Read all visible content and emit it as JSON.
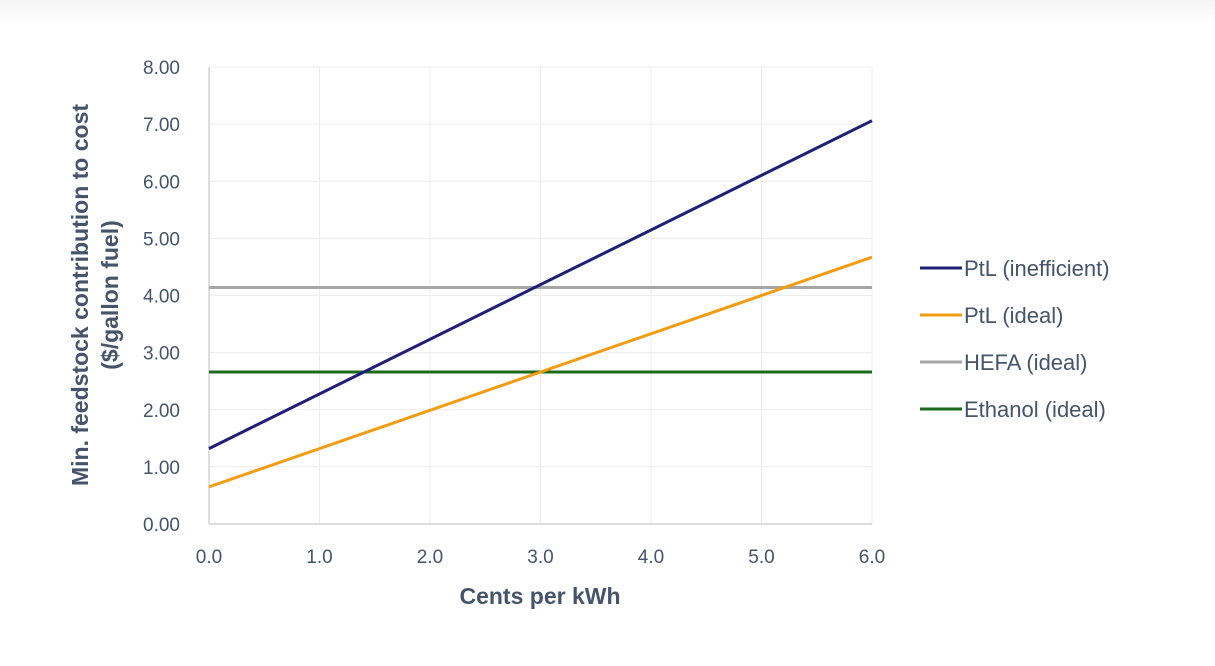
{
  "chart_data": {
    "type": "line",
    "xlabel": "Cents per kWh",
    "ylabel": "Min. feedstock contribution to cost (",
    "ylabel_line1": "Min. feedstock contribution to cost",
    "ylabel_line2": "($/gallon fuel)",
    "xlim": [
      0,
      6
    ],
    "ylim": [
      0,
      8
    ],
    "x_ticks": [
      "0.0",
      "1.0",
      "2.0",
      "3.0",
      "4.0",
      "5.0",
      "6.0"
    ],
    "y_ticks": [
      "0.00",
      "1.00",
      "2.00",
      "3.00",
      "4.00",
      "5.00",
      "6.00",
      "7.00",
      "8.00"
    ],
    "grid": true,
    "legend_position": "right",
    "series": [
      {
        "name": "PtL (inefficient)",
        "color": "#1f1f7a",
        "x": [
          0,
          6
        ],
        "y": [
          1.32,
          7.06
        ]
      },
      {
        "name": "PtL (ideal)",
        "color": "#f39c12",
        "x": [
          0,
          6
        ],
        "y": [
          0.65,
          4.67
        ]
      },
      {
        "name": "HEFA (ideal)",
        "color": "#a6a6a6",
        "x": [
          0,
          6
        ],
        "y": [
          4.14,
          4.14
        ]
      },
      {
        "name": "Ethanol (ideal)",
        "color": "#1b6b1b",
        "x": [
          0,
          6
        ],
        "y": [
          2.66,
          2.66
        ]
      }
    ]
  }
}
